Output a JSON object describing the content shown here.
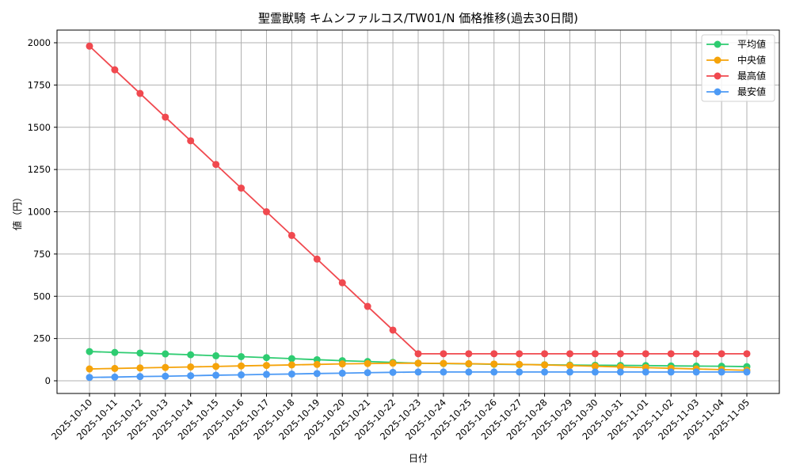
{
  "chart_data": {
    "type": "line",
    "title": "聖霊獣騎 キムンファルコス/TW01/N 価格推移(過去30日間)",
    "xlabel": "日付",
    "ylabel": "値（円）",
    "ylim": [
      -75,
      2075
    ],
    "yticks": [
      0,
      250,
      500,
      750,
      1000,
      1250,
      1500,
      1750,
      2000
    ],
    "grid": true,
    "legend_position": "upper right",
    "x": [
      "2025-10-10",
      "2025-10-11",
      "2025-10-12",
      "2025-10-13",
      "2025-10-14",
      "2025-10-15",
      "2025-10-16",
      "2025-10-17",
      "2025-10-18",
      "2025-10-19",
      "2025-10-20",
      "2025-10-21",
      "2025-10-22",
      "2025-10-23",
      "2025-10-24",
      "2025-10-25",
      "2025-10-26",
      "2025-10-27",
      "2025-10-28",
      "2025-10-29",
      "2025-10-30",
      "2025-10-31",
      "2025-11-01",
      "2025-11-02",
      "2025-11-03",
      "2025-11-04",
      "2025-11-05"
    ],
    "series": [
      {
        "name": "平均値",
        "color": "#2ecc71",
        "values": [
          173,
          168,
          164,
          159,
          154,
          148,
          143,
          137,
          131,
          125,
          119,
          114,
          109,
          104,
          102,
          100,
          98,
          96,
          95,
          93,
          92,
          91,
          90,
          88,
          87,
          86,
          84
        ]
      },
      {
        "name": "中央値",
        "color": "#f5a30a",
        "values": [
          70,
          73,
          76,
          79,
          82,
          85,
          88,
          91,
          94,
          97,
          100,
          102,
          104,
          104,
          103,
          101,
          99,
          97,
          94,
          90,
          86,
          82,
          78,
          74,
          70,
          66,
          62
        ]
      },
      {
        "name": "最高値",
        "color": "#f0494f",
        "values": [
          1980,
          1840,
          1700,
          1560,
          1420,
          1280,
          1140,
          1000,
          860,
          720,
          580,
          440,
          300,
          160,
          160,
          160,
          160,
          160,
          160,
          160,
          160,
          160,
          160,
          160,
          160,
          160,
          160
        ]
      },
      {
        "name": "最安値",
        "color": "#4d9af5",
        "values": [
          20,
          22,
          25,
          27,
          30,
          33,
          35,
          38,
          40,
          43,
          45,
          48,
          50,
          52,
          52,
          52,
          52,
          52,
          52,
          52,
          52,
          52,
          52,
          52,
          52,
          52,
          52
        ]
      }
    ]
  }
}
